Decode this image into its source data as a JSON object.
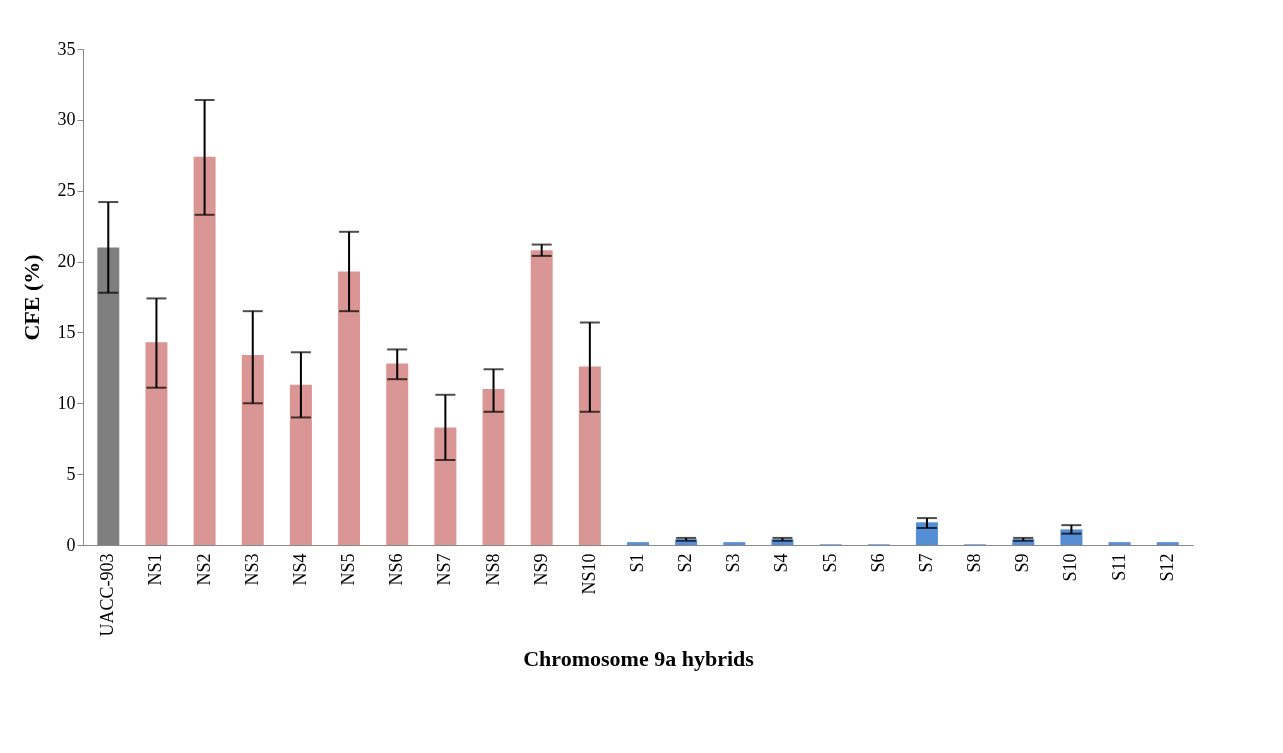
{
  "chart_data": {
    "type": "bar",
    "xlabel": "Chromosome 9a hybrids",
    "ylabel": "CFE (%)",
    "categories": [
      "UACC-903",
      "NS1",
      "NS2",
      "NS3",
      "NS4",
      "NS5",
      "NS6",
      "NS7",
      "NS8",
      "NS9",
      "NS10",
      "S1",
      "S2",
      "S3",
      "S4",
      "S5",
      "S6",
      "S7",
      "S8",
      "S9",
      "S10",
      "S11",
      "S12"
    ],
    "values": [
      21,
      14.3,
      27.4,
      13.4,
      11.3,
      19.3,
      12.8,
      8.3,
      11,
      20.8,
      12.6,
      0.2,
      0.4,
      0.2,
      0.4,
      0.05,
      0.05,
      1.6,
      0.05,
      0.4,
      1.1,
      0.2,
      0.2
    ],
    "colors": [
      "#7f7f7f",
      "#d99694",
      "#d99694",
      "#d99694",
      "#d99694",
      "#d99694",
      "#d99694",
      "#d99694",
      "#d99694",
      "#d99694",
      "#d99694",
      "#558ed5",
      "#558ed5",
      "#558ed5",
      "#558ed5",
      "#558ed5",
      "#558ed5",
      "#558ed5",
      "#558ed5",
      "#558ed5",
      "#558ed5",
      "#558ed5",
      "#558ed5"
    ],
    "errors": [
      [
        17.8,
        24.2
      ],
      [
        11.1,
        17.4
      ],
      [
        23.3,
        31.4
      ],
      [
        10,
        16.5
      ],
      [
        9,
        13.6
      ],
      [
        16.5,
        22.1
      ],
      [
        11.7,
        13.8
      ],
      [
        6,
        10.6
      ],
      [
        9.4,
        12.4
      ],
      [
        20.4,
        21.2
      ],
      [
        9.4,
        15.7
      ],
      null,
      [
        0.3,
        0.5
      ],
      null,
      [
        0.3,
        0.5
      ],
      null,
      null,
      [
        1.2,
        1.9
      ],
      null,
      [
        0.3,
        0.5
      ],
      [
        0.8,
        1.4
      ],
      null,
      null
    ],
    "ylim": [
      0,
      35
    ],
    "yticks": [
      0,
      5,
      10,
      15,
      20,
      25,
      30,
      35
    ],
    "grid": false
  }
}
